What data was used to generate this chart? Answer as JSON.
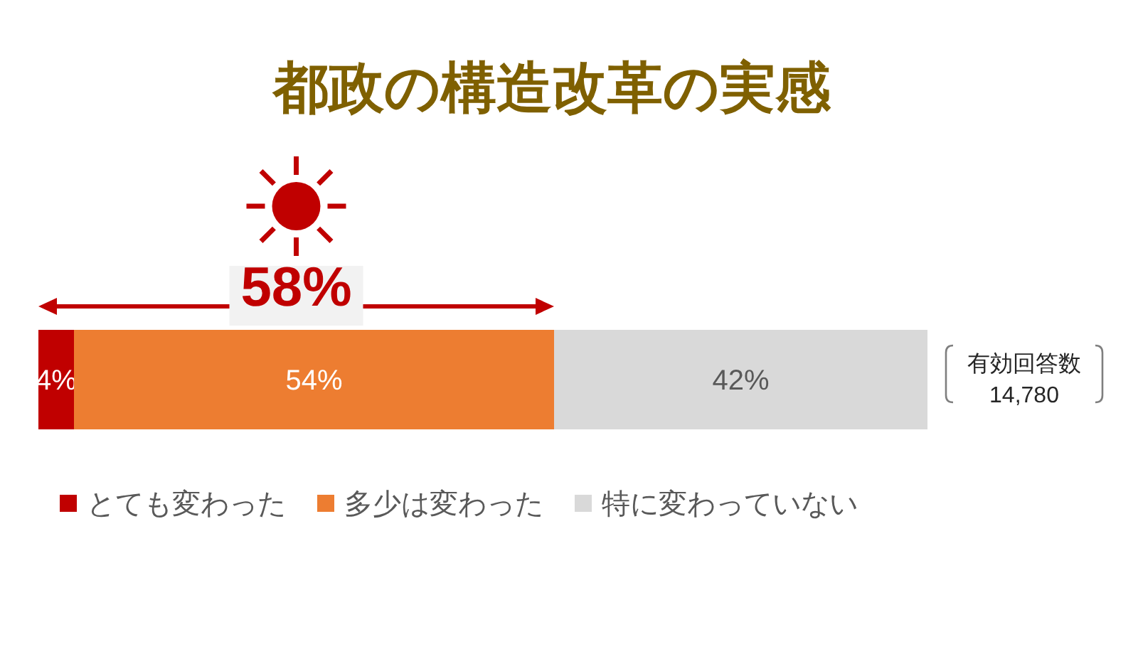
{
  "chart_data": {
    "type": "bar",
    "title": "都政の構造改革の実感",
    "orientation": "horizontal",
    "stacked": true,
    "categories": [
      null
    ],
    "xlim": [
      0,
      100
    ],
    "tick_labels": false,
    "legend": "bottom",
    "series": [
      {
        "name": "とても変わった",
        "color": "#c00000",
        "values": [
          4
        ],
        "value_labels": [
          "4%"
        ]
      },
      {
        "name": "多少は変わった",
        "color": "#ed7d31",
        "values": [
          54
        ],
        "value_labels": [
          "54%"
        ]
      },
      {
        "name": "特に変わっていない",
        "color": "#d9d9d9",
        "values": [
          42
        ],
        "value_labels": [
          "42%"
        ]
      }
    ],
    "annotations": [
      "58%",
      "有効回答数\n14,780"
    ]
  }
}
